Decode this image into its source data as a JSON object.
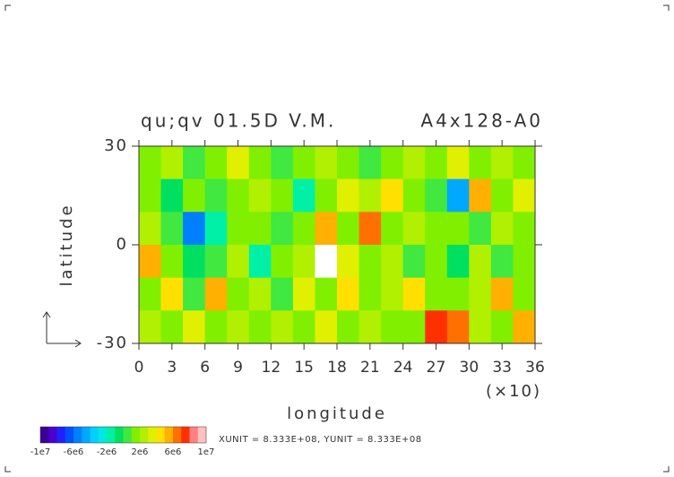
{
  "chart_data": {
    "type": "heatmap",
    "title": "qu;qv  01.5D V.M.",
    "subtitle": "A4x128-A0",
    "x_label": "longitude",
    "x_scale_label": "(×10)",
    "y_label": "latitude",
    "unit_note": "XUNIT = 8.333E+08, YUNIT = 8.333E+08",
    "xlim": [
      0,
      36
    ],
    "xticks": [
      0,
      3,
      6,
      9,
      12,
      15,
      18,
      21,
      24,
      27,
      30,
      33,
      36
    ],
    "ylim": [
      -30,
      30
    ],
    "yticks": [
      -30,
      0,
      30
    ],
    "x": [
      1,
      3,
      5,
      7,
      9,
      11,
      13,
      15,
      17,
      19,
      21,
      23,
      25,
      27,
      29,
      31,
      33,
      35
    ],
    "y": [
      25,
      15,
      5,
      -5,
      -15,
      -25
    ],
    "z": [
      [
        1000000.0,
        2000000.0,
        500000.0,
        1000000.0,
        3000000.0,
        1000000.0,
        0,
        1000000.0,
        2000000.0,
        1000000.0,
        500000.0,
        1000000.0,
        2000000.0,
        1000000.0,
        3000000.0,
        1000000.0,
        2000000.0,
        1000000.0
      ],
      [
        1000000.0,
        -1000000.0,
        1000000.0,
        0,
        1000000.0,
        2000000.0,
        1000000.0,
        -2000000.0,
        1000000.0,
        3000000.0,
        2000000.0,
        4000000.0,
        1000000.0,
        0,
        -5000000.0,
        5000000.0,
        1000000.0,
        3000000.0
      ],
      [
        2000000.0,
        0,
        -6000000.0,
        -2000000.0,
        1000000.0,
        1000000.0,
        0,
        1000000.0,
        5000000.0,
        1000000.0,
        6000000.0,
        1000000.0,
        2000000.0,
        1000000.0,
        1000000.0,
        0,
        2000000.0,
        1000000.0
      ],
      [
        5000000.0,
        1000000.0,
        -1000000.0,
        0,
        2000000.0,
        -2000000.0,
        1000000.0,
        2000000.0,
        12000000.0,
        3000000.0,
        1000000.0,
        2000000.0,
        0,
        1000000.0,
        -1000000.0,
        2000000.0,
        0,
        1000000.0
      ],
      [
        1000000.0,
        4000000.0,
        0,
        5000000.0,
        1000000.0,
        2000000.0,
        0,
        3000000.0,
        1000000.0,
        4000000.0,
        1000000.0,
        2000000.0,
        4000000.0,
        1000000.0,
        1000000.0,
        2000000.0,
        5000000.0,
        1000000.0
      ],
      [
        2000000.0,
        1000000.0,
        3000000.0,
        1000000.0,
        2000000.0,
        1000000.0,
        2000000.0,
        1000000.0,
        3000000.0,
        1000000.0,
        2000000.0,
        1000000.0,
        1000000.0,
        7000000.0,
        6000000.0,
        2000000.0,
        1000000.0,
        5000000.0
      ]
    ],
    "clim": [
      -10000000.0,
      10000000.0
    ],
    "colors": [
      "#3a0096",
      "#4a00d0",
      "#2020ff",
      "#0050ff",
      "#0080ff",
      "#00a8ff",
      "#00d0ff",
      "#00e8e0",
      "#00f0a8",
      "#00e060",
      "#40e840",
      "#80f000",
      "#b0f000",
      "#e0f000",
      "#ffe000",
      "#ffb000",
      "#ff7000",
      "#ff3000",
      "#ff8080",
      "#ffc0c0"
    ],
    "over_color": "#ffffff",
    "cticks": [
      {
        "value": -10000000.0,
        "label": "-1e7"
      },
      {
        "value": -6000000.0,
        "label": "-6e6"
      },
      {
        "value": -2000000.0,
        "label": "-2e6"
      },
      {
        "value": 2000000.0,
        "label": "2e6"
      },
      {
        "value": 6000000.0,
        "label": "6e6"
      },
      {
        "value": 10000000.0,
        "label": "1e7"
      }
    ]
  }
}
